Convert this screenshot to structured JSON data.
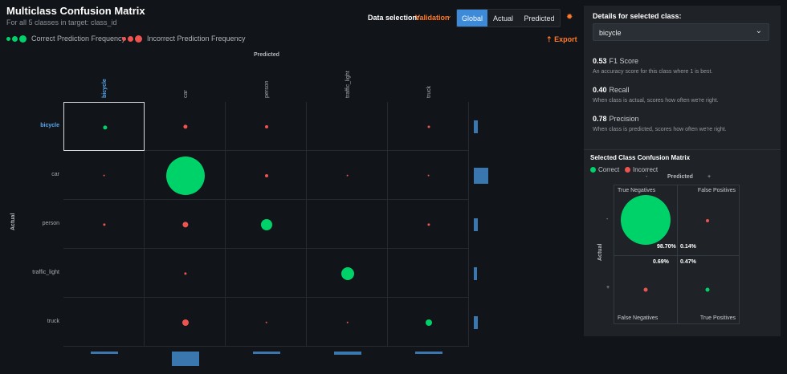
{
  "header": {
    "title": "Multiclass Confusion Matrix",
    "subtitle": "For all 5 classes in target: class_id",
    "legend_correct": "Correct Prediction Frequency",
    "legend_incorrect": "Incorrect Prediction Frequency",
    "data_selection_label": "Data selection:",
    "data_selection_value": "Validation",
    "modes": [
      "Global",
      "Actual",
      "Predicted"
    ],
    "active_mode": "Global",
    "export_label": "Export",
    "export_icon": "⇡"
  },
  "colors": {
    "correct": "#00d26a",
    "incorrect": "#ef5350",
    "accent": "#ff7a2b",
    "active": "#3c8ad8",
    "bar": "#3a77ae"
  },
  "matrix": {
    "predicted_label": "Predicted",
    "actual_label": "Actual",
    "classes": [
      "bicycle",
      "car",
      "person",
      "traffic_light",
      "truck"
    ],
    "selected_class": "bicycle",
    "cells": [
      [
        {
          "r": 2.6,
          "c": true
        },
        {
          "r": 2.6,
          "c": false
        },
        {
          "r": 2.0,
          "c": false
        },
        null,
        {
          "r": 1.5,
          "c": false
        }
      ],
      [
        {
          "r": 1.4,
          "c": false
        },
        {
          "r": 24,
          "c": true
        },
        {
          "r": 2.0,
          "c": false
        },
        {
          "r": 1.4,
          "c": false
        },
        {
          "r": 1.4,
          "c": false
        }
      ],
      [
        {
          "r": 1.6,
          "c": false
        },
        {
          "r": 3.6,
          "c": false
        },
        {
          "r": 7.0,
          "c": true
        },
        null,
        {
          "r": 1.6,
          "c": false
        }
      ],
      [
        null,
        {
          "r": 1.6,
          "c": false
        },
        null,
        {
          "r": 8.0,
          "c": true
        },
        null
      ],
      [
        null,
        {
          "r": 4.0,
          "c": false
        },
        {
          "r": 1.3,
          "c": false
        },
        {
          "r": 1.3,
          "c": false
        },
        {
          "r": 4.0,
          "c": true
        }
      ]
    ],
    "row_totals": [
      0.3,
      1.0,
      0.28,
      0.24,
      0.28
    ],
    "col_totals": [
      0.68,
      0.68,
      0.68,
      0.68,
      0.68
    ],
    "col_heights": [
      0.12,
      1.0,
      0.16,
      0.2,
      0.12
    ]
  },
  "details": {
    "heading": "Details for selected class:",
    "selected": "bicycle",
    "metrics": [
      {
        "value": "0.53",
        "name": "F1 Score",
        "desc": "An accuracy score for this class where 1 is best."
      },
      {
        "value": "0.40",
        "name": "Recall",
        "desc": "When class is actual, scores how often we're right."
      },
      {
        "value": "0.78",
        "name": "Precision",
        "desc": "When class is predicted, scores how often we're right."
      }
    ]
  },
  "selected_cm": {
    "title": "Selected Class Confusion Matrix",
    "legend_correct": "Correct",
    "legend_incorrect": "Incorrect",
    "predicted_label": "Predicted",
    "actual_label": "Actual",
    "minus": "-",
    "plus": "+",
    "tn_label": "True Negatives",
    "fp_label": "False Positives",
    "fn_label": "False Negatives",
    "tp_label": "True Positives",
    "tn_pct": "98.70%",
    "fp_pct": "0.14%",
    "fn_pct": "0.69%",
    "tp_pct": "0.47%"
  }
}
